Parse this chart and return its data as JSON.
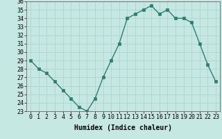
{
  "x": [
    0,
    1,
    2,
    3,
    4,
    5,
    6,
    7,
    8,
    9,
    10,
    11,
    12,
    13,
    14,
    15,
    16,
    17,
    18,
    19,
    20,
    21,
    22,
    23
  ],
  "y": [
    29,
    28,
    27.5,
    26.5,
    25.5,
    24.5,
    23.5,
    23,
    24.5,
    27,
    29,
    31,
    34,
    34.5,
    35,
    35.5,
    34.5,
    35,
    34,
    34,
    33.5,
    31,
    28.5,
    26.5
  ],
  "line_color": "#2e7d6e",
  "marker_color": "#2e7d6e",
  "bg_color": "#c5e8e2",
  "grid_color": "#aacfca",
  "xlabel": "Humidex (Indice chaleur)",
  "xlim": [
    -0.5,
    23.5
  ],
  "ylim": [
    23,
    36
  ],
  "yticks": [
    23,
    24,
    25,
    26,
    27,
    28,
    29,
    30,
    31,
    32,
    33,
    34,
    35,
    36
  ],
  "xticks": [
    0,
    1,
    2,
    3,
    4,
    5,
    6,
    7,
    8,
    9,
    10,
    11,
    12,
    13,
    14,
    15,
    16,
    17,
    18,
    19,
    20,
    21,
    22,
    23
  ],
  "xlabel_fontsize": 7,
  "tick_fontsize": 6,
  "marker_size": 2.5,
  "line_width": 1.0
}
